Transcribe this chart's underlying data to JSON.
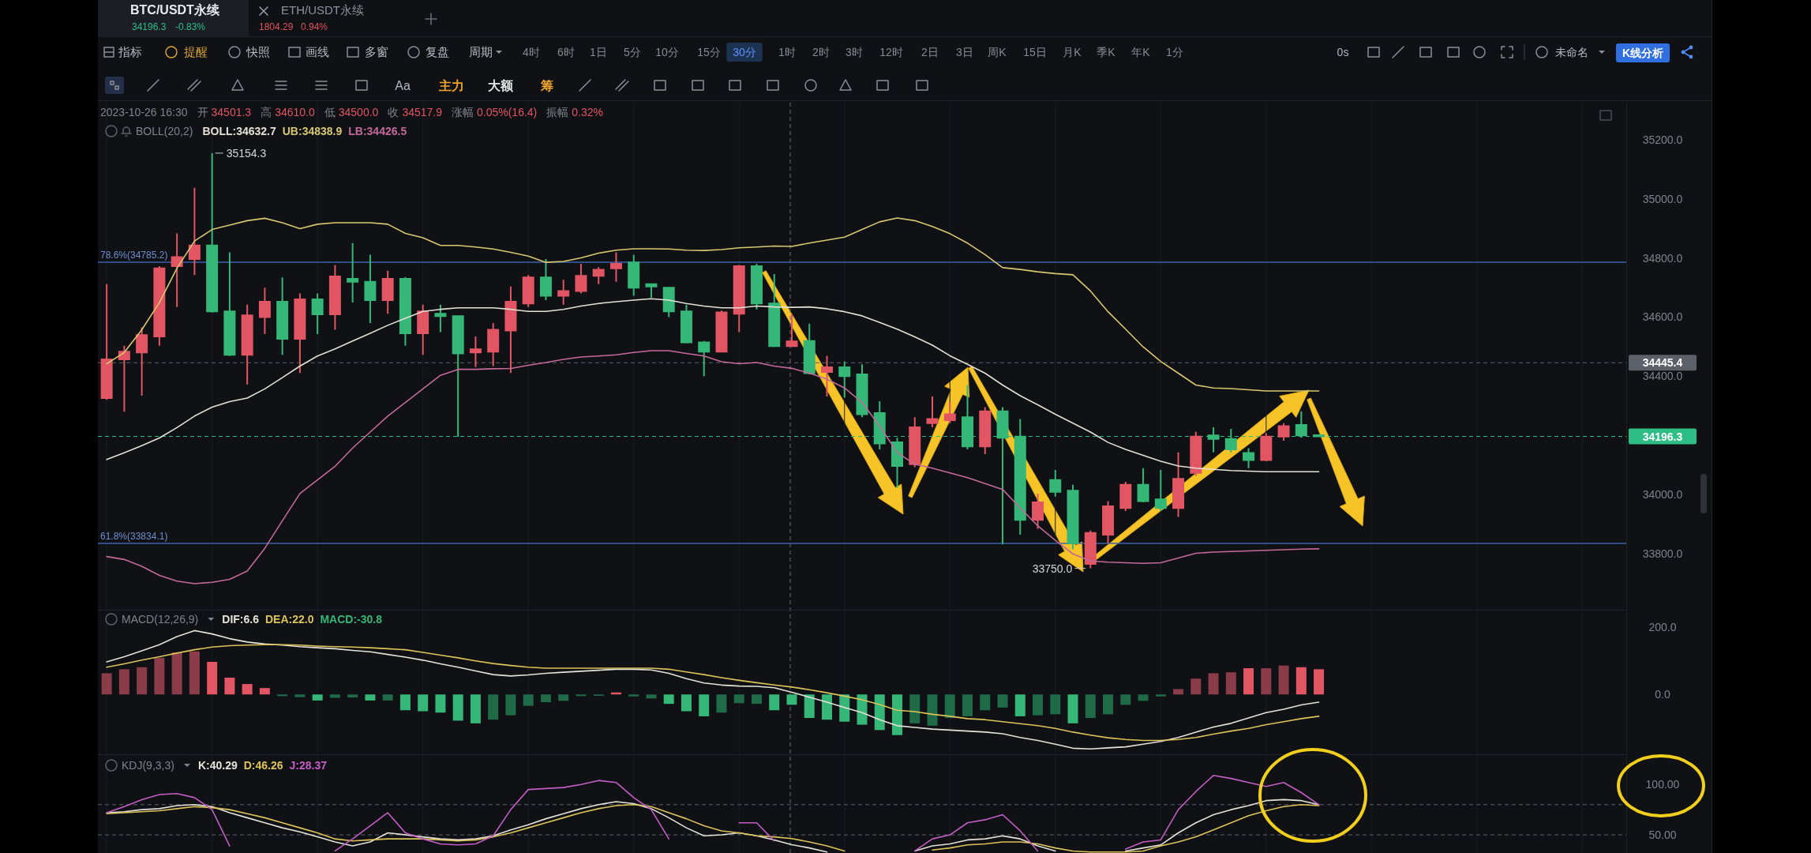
{
  "chart_data": [
    {
      "type": "other",
      "annotations": [
        "BTC/USDT永续",
        "34196.3",
        "-0.83%",
        "ETH/USDT永续",
        "1804.29",
        "0.94%",
        "指标",
        "提醒",
        "快照",
        "画线",
        "多窗",
        "复盘",
        "周期",
        "4时",
        "6时",
        "1日",
        "5分",
        "10分",
        "15分",
        "30分",
        "1时",
        "2时",
        "3时",
        "12时",
        "2日",
        "3日",
        "周K",
        "15日",
        "月K",
        "季K",
        "年K",
        "1分",
        "0s",
        "未命名",
        "K线分析",
        "Aa",
        "主力",
        "大额",
        "筹"
      ]
    },
    {
      "type": "candlestick",
      "categories": [
        null,
        null,
        null,
        null,
        null,
        null,
        null,
        null,
        null,
        null,
        null,
        null,
        null,
        null,
        null,
        null,
        null,
        null,
        null,
        null,
        null,
        null,
        null,
        null,
        null,
        null,
        null,
        null,
        null,
        null,
        null,
        null,
        null,
        null,
        null,
        null,
        null,
        null,
        null,
        null,
        null,
        null,
        null,
        null,
        null,
        null,
        null,
        null,
        null,
        null,
        null,
        null,
        null,
        null,
        null,
        null,
        null,
        null,
        null,
        null,
        null,
        null,
        null,
        null,
        null,
        null,
        null,
        null,
        null,
        null,
        null,
        null,
        null,
        null,
        null,
        null,
        null,
        null,
        null,
        null,
        null,
        null,
        null,
        null,
        null,
        null,
        null
      ],
      "ohlc": [
        [
          34326,
          34711,
          34320,
          34457
        ],
        [
          34457,
          34503,
          34280,
          34483
        ],
        [
          34480,
          34565,
          34334,
          34539
        ],
        [
          34534,
          34772,
          34503,
          34765
        ],
        [
          34772,
          34883,
          34634,
          34803
        ],
        [
          34796,
          35037,
          34742,
          34842
        ],
        [
          34842,
          35154.3,
          34615,
          34619
        ],
        [
          34619,
          34819,
          34468,
          34472
        ],
        [
          34472,
          34642,
          34372,
          34606
        ],
        [
          34600,
          34699,
          34542,
          34652
        ],
        [
          34652,
          34734,
          34472,
          34526
        ],
        [
          34526,
          34680,
          34411,
          34660
        ],
        [
          34660,
          34680,
          34542,
          34609
        ],
        [
          34609,
          34776,
          34557,
          34737
        ],
        [
          34729,
          34850,
          34649,
          34719
        ],
        [
          34719,
          34811,
          34580,
          34657
        ],
        [
          34657,
          34757,
          34611,
          34729
        ],
        [
          34729,
          34735,
          34503,
          34545
        ],
        [
          34545,
          34642,
          34472,
          34619
        ],
        [
          34611,
          34642,
          34549,
          34603
        ],
        [
          34603,
          34606,
          34195,
          34477
        ],
        [
          34480,
          34534,
          34431,
          34491
        ],
        [
          34483,
          34580,
          34434,
          34557
        ],
        [
          34554,
          34703,
          34411,
          34652
        ],
        [
          34646,
          34742,
          34634,
          34734
        ],
        [
          34734,
          34796,
          34657,
          34672
        ],
        [
          34672,
          34726,
          34642,
          34688
        ],
        [
          34688,
          34780,
          34680,
          34739
        ],
        [
          34739,
          34769,
          34711,
          34760
        ],
        [
          34765,
          34819,
          34719,
          34780
        ],
        [
          34785,
          34811,
          34672,
          34699
        ],
        [
          34711,
          34714,
          34665,
          34703
        ],
        [
          34699,
          34702,
          34600,
          34619
        ],
        [
          34619,
          34642,
          34511,
          34514
        ],
        [
          34514,
          34519,
          34400,
          34483
        ],
        [
          34483,
          34622,
          34480,
          34616
        ],
        [
          34611,
          34776,
          34549,
          34772
        ],
        [
          34772,
          34780,
          34626,
          34646
        ],
        [
          34646,
          34745,
          34498,
          34501.5
        ],
        [
          34501.3,
          34610.0,
          34500.0,
          34517.9
        ],
        [
          34519,
          34578,
          34406,
          34410
        ],
        [
          34414,
          34469,
          34331,
          34430
        ],
        [
          34430,
          34450,
          34327,
          34400
        ],
        [
          34406,
          34440,
          34261,
          34271
        ],
        [
          34275,
          34315,
          34152,
          34172
        ],
        [
          34176,
          34192,
          34023,
          34096
        ],
        [
          34102,
          34261,
          34092,
          34227
        ],
        [
          34241,
          34331,
          34227,
          34255
        ],
        [
          34251,
          34311,
          34241,
          34271
        ],
        [
          34261,
          34370,
          34152,
          34162
        ],
        [
          34162,
          34295,
          34136,
          34281
        ],
        [
          34281,
          34295,
          33831,
          34192
        ],
        [
          34196,
          34255,
          33864,
          33914
        ],
        [
          33914,
          34003,
          33884,
          33973
        ],
        [
          34049,
          34083,
          33993,
          34009
        ],
        [
          34013,
          34033,
          33815,
          33835
        ],
        [
          33765,
          33878,
          33750.0,
          33870
        ],
        [
          33864,
          33977,
          33835,
          33960
        ],
        [
          33954,
          34043,
          33944,
          34033
        ],
        [
          34033,
          34089,
          33973,
          33977
        ],
        [
          33983,
          34083,
          33944,
          33954
        ],
        [
          33954,
          34142,
          33924,
          34053
        ],
        [
          34073,
          34212,
          34063,
          34196
        ],
        [
          34200,
          34227,
          34142,
          34188
        ],
        [
          34188,
          34222,
          34142,
          34152
        ],
        [
          34140,
          34156,
          34089,
          34116
        ],
        [
          34116,
          34208,
          34112,
          34196
        ],
        [
          34196,
          34241,
          34182,
          34231
        ],
        [
          34235,
          34281,
          34192,
          34200
        ],
        [
          34200,
          34200,
          34196.3,
          34196.3
        ],
        null,
        null,
        null,
        null,
        null,
        null,
        null,
        null,
        null,
        null,
        null,
        null,
        null,
        null,
        null,
        null,
        null
      ],
      "colors": [
        "#e25563",
        "#e25563",
        "#e25563",
        "#e25563",
        "#e25563",
        "#e25563",
        "#35b777",
        "#35b777",
        "#e25563",
        "#e25563",
        "#35b777",
        "#e25563",
        "#35b777",
        "#e25563",
        "#35b777",
        "#35b777",
        "#e25563",
        "#35b777",
        "#e25563",
        "#35b777",
        "#35b777",
        "#e25563",
        "#e25563",
        "#e25563",
        "#e25563",
        "#35b777",
        "#e25563",
        "#e25563",
        "#e25563",
        "#e25563",
        "#35b777",
        "#35b777",
        "#35b777",
        "#35b777",
        "#35b777",
        "#e25563",
        "#e25563",
        "#35b777",
        "#35b777",
        "#e25563",
        "#35b777",
        "#e25563",
        "#35b777",
        "#35b777",
        "#35b777",
        "#35b777",
        "#e25563",
        "#e25563",
        "#e25563",
        "#35b777",
        "#e25563",
        "#35b777",
        "#35b777",
        "#e25563",
        "#35b777",
        "#35b777",
        "#e25563",
        "#e25563",
        "#e25563",
        "#35b777",
        "#35b777",
        "#e25563",
        "#e25563",
        "#35b777",
        "#35b777",
        "#35b777",
        "#e25563",
        "#e25563",
        "#35b777",
        "#35b777",
        null,
        null,
        null,
        null,
        null,
        null,
        null,
        null,
        null,
        null,
        null,
        null,
        null,
        null,
        null,
        null,
        null
      ],
      "series": [
        {
          "name": "BOLL:34632.7",
          "type": "line",
          "color": "#e4e0d6",
          "values": [
            34118,
            34141,
            34165,
            34191,
            34226,
            34265,
            34295,
            34314,
            34326,
            34357,
            34395,
            34434,
            34468,
            34492,
            34519,
            34545,
            34572,
            34596,
            34619,
            34626,
            34631,
            34631,
            34631,
            34626,
            34619,
            34619,
            34626,
            34637,
            34646,
            34652,
            34657,
            34662,
            34657,
            34646,
            34637,
            34631,
            34631,
            34637,
            34634,
            34632.7,
            34634,
            34628,
            34618,
            34604,
            34582,
            34559,
            34533,
            34505,
            34469,
            34440,
            34410,
            34370,
            34334,
            34303,
            34271,
            34241,
            34211,
            34176,
            34152,
            34132,
            34112,
            34096,
            34089,
            34085,
            34081,
            34079,
            34077,
            34077,
            34077,
            34077,
            null,
            null,
            null,
            null,
            null,
            null,
            null,
            null,
            null,
            null,
            null,
            null,
            null,
            null,
            null,
            null,
            null
          ]
        },
        {
          "name": "UB:34838.9",
          "type": "line",
          "color": "#d9c770",
          "values": [
            34442,
            34480,
            34557,
            34649,
            34765,
            34857,
            34896,
            34911,
            34926,
            34934,
            34919,
            34899,
            34914,
            34919,
            34919,
            34919,
            34914,
            34883,
            34868,
            34842,
            34842,
            34837,
            34830,
            34819,
            34806,
            34785,
            34788,
            34800,
            34816,
            34826,
            34831,
            34831,
            34830,
            34826,
            34825,
            34828,
            34834,
            34837,
            34840,
            34838.9,
            34850,
            34860,
            34870,
            34896,
            34922,
            34935,
            34926,
            34906,
            34882,
            34850,
            34811,
            34767,
            34761,
            34753,
            34747,
            34743,
            34688,
            34618,
            34559,
            34499,
            34450,
            34410,
            34370,
            34360,
            34358,
            34354,
            34350,
            34350,
            34350,
            34350,
            null,
            null,
            null,
            null,
            null,
            null,
            null,
            null,
            null,
            null,
            null,
            null,
            null,
            null,
            null,
            null,
            null
          ]
        },
        {
          "name": "LB:34426.5",
          "type": "line",
          "color": "#c46a9a",
          "values": [
            33790,
            33780,
            33757,
            33726,
            33707,
            33698,
            33703,
            33713,
            33741,
            33818,
            33911,
            34003,
            34049,
            34095,
            34157,
            34211,
            34265,
            34311,
            34357,
            34403,
            34423,
            34423,
            34425,
            34426,
            34437,
            34446,
            34457,
            34465,
            34468,
            34472,
            34480,
            34486,
            34486,
            34477,
            34468,
            34449,
            34442,
            34446,
            34434,
            34426.5,
            34410,
            34390,
            34360,
            34311,
            34231,
            34142,
            34102,
            34089,
            34073,
            34057,
            34037,
            34017,
            33954,
            33894,
            33845,
            33799,
            33775,
            33771,
            33769,
            33767,
            33769,
            33785,
            33801,
            33805,
            33807,
            33809,
            33811,
            33813,
            33815,
            33816,
            null,
            null,
            null,
            null,
            null,
            null,
            null,
            null,
            null,
            null,
            null,
            null,
            null,
            null,
            null,
            null,
            null
          ]
        }
      ],
      "ylim": [
        33610,
        35325
      ],
      "yticks": [
        {
          "value": 35200,
          "label": "35200.0"
        },
        {
          "value": 35000,
          "label": "35000.0"
        },
        {
          "value": 34800,
          "label": "34800.0"
        },
        {
          "value": 34600,
          "label": "34600.0"
        },
        {
          "value": 34400,
          "label": "34400.0"
        },
        {
          "value": 34000,
          "label": "34000.0"
        },
        {
          "value": 33800,
          "label": "33800.0"
        }
      ],
      "grid": "x",
      "legend": "top left",
      "ref_lines": [
        {
          "axis": "y",
          "value": 34785.2,
          "label": "78.6%(34785.2)",
          "color": "#3d63a8",
          "line_style": "solid"
        },
        {
          "axis": "y",
          "value": 33834.1,
          "label": "61.8%(33834.1)",
          "color": "#3d63a8",
          "line_style": "solid"
        },
        {
          "axis": "y",
          "value": 34445.4,
          "label": "34445.4",
          "color": "#5c6068",
          "line_style": "dashed"
        },
        {
          "axis": "y",
          "value": 34196.3,
          "label": "34196.3",
          "color": "#2ebd85",
          "line_style": "dashed"
        }
      ],
      "annotations": [
        "2023-10-26 16:30",
        "开",
        "34501.3",
        "高",
        "34610.0",
        "低",
        "34500.0",
        "收",
        "34517.9",
        "涨幅",
        "0.05%(16.4)",
        "振幅",
        "0.32%",
        "BOLL(20,2)",
        "35154.3",
        "33750.0"
      ]
    },
    {
      "type": "bar",
      "categories": [
        null,
        null,
        null,
        null,
        null,
        null,
        null,
        null,
        null,
        null,
        null,
        null,
        null,
        null,
        null,
        null,
        null,
        null,
        null,
        null,
        null,
        null,
        null,
        null,
        null,
        null,
        null,
        null,
        null,
        null,
        null,
        null,
        null,
        null,
        null,
        null,
        null,
        null,
        null,
        null,
        null,
        null,
        null,
        null,
        null,
        null,
        null,
        null,
        null,
        null,
        null,
        null,
        null,
        null,
        null,
        null,
        null,
        null,
        null,
        null,
        null,
        null,
        null,
        null,
        null,
        null,
        null,
        null,
        null,
        null,
        null,
        null,
        null,
        null,
        null,
        null,
        null,
        null,
        null,
        null,
        null,
        null,
        null,
        null,
        null,
        null,
        null
      ],
      "series": [
        {
          "name": "DIF:6.6",
          "type": "line",
          "color": "#e6e2da",
          "values": [
            97,
            112,
            130,
            148,
            172,
            190,
            180,
            166,
            156,
            150,
            147,
            142,
            139,
            136,
            131,
            127,
            119,
            111,
            102,
            91,
            81,
            70,
            59,
            55,
            58,
            63,
            66,
            69,
            72,
            75,
            75,
            73,
            63,
            47,
            34,
            28,
            25,
            24,
            20,
            6.6,
            -8,
            -23,
            -39,
            -54,
            -75,
            -93,
            -98,
            -103,
            -106,
            -109,
            -112,
            -117,
            -128,
            -137,
            -148,
            -160,
            -162,
            -159,
            -156,
            -148,
            -140,
            -128,
            -112,
            -97,
            -86,
            -70,
            -54,
            -44,
            -31,
            -23,
            null,
            null,
            null,
            null,
            null,
            null,
            null,
            null,
            null,
            null,
            null,
            null,
            null,
            null,
            null,
            null,
            null
          ]
        },
        {
          "name": "DEA:22.0",
          "type": "line",
          "color": "#dcc35a",
          "values": [
            81,
            91,
            102,
            112,
            123,
            133,
            141,
            145,
            147,
            148,
            148,
            147,
            144,
            142,
            141,
            139,
            136,
            133,
            125,
            117,
            109,
            100,
            92,
            86,
            81,
            78,
            78,
            78,
            78,
            78,
            78,
            78,
            75,
            67,
            59,
            50,
            42,
            35,
            28,
            22.0,
            14,
            5,
            -5,
            -16,
            -30,
            -47,
            -51,
            -59,
            -65,
            -72,
            -75,
            -81,
            -87,
            -93,
            -101,
            -112,
            -121,
            -129,
            -134,
            -137,
            -137,
            -134,
            -128,
            -118,
            -109,
            -101,
            -90,
            -81,
            -72,
            -65,
            null,
            null,
            null,
            null,
            null,
            null,
            null,
            null,
            null,
            null,
            null,
            null,
            null,
            null,
            null,
            null,
            null
          ]
        },
        {
          "name": "MACD:-30.8",
          "type": "bar",
          "color": "#35b777",
          "colors": [
            "#8a3c48",
            "#8a3c48",
            "#8a3c48",
            "#8a3c48",
            "#8a3c48",
            "#8a3c48",
            "#e25563",
            "#e25563",
            "#e25563",
            "#e25563",
            "#1f6a47",
            "#1f6a47",
            "#35b777",
            "#1f6a47",
            "#1f6a47",
            "#35b777",
            "#1f6a47",
            "#35b777",
            "#35b777",
            "#35b777",
            "#35b777",
            "#35b777",
            "#1f6a47",
            "#1f6a47",
            "#1f6a47",
            "#1f6a47",
            "#1f6a47",
            "#1f6a47",
            "#1f6a47",
            "#e25563",
            "#1f6a47",
            "#1f6a47",
            "#35b777",
            "#35b777",
            "#35b777",
            "#1f6a47",
            "#1f6a47",
            "#1f6a47",
            "#35b777",
            "#35b777",
            "#35b777",
            "#35b777",
            "#35b777",
            "#35b777",
            "#35b777",
            "#35b777",
            "#1f6a47",
            "#1f6a47",
            "#1f6a47",
            "#1f6a47",
            "#1f6a47",
            "#1f6a47",
            "#35b777",
            "#1f6a47",
            "#1f6a47",
            "#35b777",
            "#1f6a47",
            "#1f6a47",
            "#1f6a47",
            "#1f6a47",
            "#1f6a47",
            "#8a3c48",
            "#8a3c48",
            "#8a3c48",
            "#8a3c48",
            "#e25563",
            "#8a3c48",
            "#8a3c48",
            "#e25563",
            "#e25563",
            null,
            null,
            null,
            null,
            null,
            null,
            null,
            null,
            null,
            null,
            null,
            null,
            null,
            null,
            null,
            null,
            null
          ],
          "values": [
            63,
            75,
            81,
            109,
            125,
            128,
            97,
            50,
            31,
            19,
            -5,
            -8,
            -18,
            -10,
            -9,
            -18,
            -18,
            -47,
            -50,
            -54,
            -78,
            -86,
            -75,
            -62,
            -34,
            -23,
            -19,
            -5,
            -4,
            6,
            -6,
            -12,
            -28,
            -50,
            -65,
            -54,
            -26,
            -28,
            -47,
            -30.8,
            -70,
            -75,
            -81,
            -90,
            -106,
            -121,
            -86,
            -93,
            -70,
            -65,
            -47,
            -39,
            -65,
            -62,
            -59,
            -86,
            -70,
            -59,
            -31,
            -19,
            -6,
            16,
            47,
            63,
            66,
            78,
            78,
            86,
            81,
            75,
            null,
            null,
            null,
            null,
            null,
            null,
            null,
            null,
            null,
            null,
            null,
            null,
            null,
            null,
            null,
            null,
            null
          ]
        }
      ],
      "ylim": [
        -178,
        252
      ],
      "yticks": [
        {
          "value": 200,
          "label": "200.0"
        },
        {
          "value": 0,
          "label": "0.0"
        }
      ],
      "grid": "x",
      "legend": "top left",
      "annotations": [
        "MACD(12,26,9)"
      ]
    },
    {
      "type": "line",
      "categories": [
        null,
        null,
        null,
        null,
        null,
        null,
        null,
        null,
        null,
        null,
        null,
        null,
        null,
        null,
        null,
        null,
        null,
        null,
        null,
        null,
        null,
        null,
        null,
        null,
        null,
        null,
        null,
        null,
        null,
        null,
        null,
        null,
        null,
        null,
        null,
        null,
        null,
        null,
        null,
        null,
        null,
        null,
        null,
        null,
        null,
        null,
        null,
        null,
        null,
        null,
        null,
        null,
        null,
        null,
        null,
        null,
        null,
        null,
        null,
        null,
        null,
        null,
        null,
        null,
        null,
        null,
        null,
        null,
        null,
        null,
        null,
        null,
        null,
        null,
        null,
        null,
        null,
        null,
        null,
        null,
        null,
        null,
        null,
        null,
        null,
        null,
        null
      ],
      "series": [
        {
          "name": "K:40.29",
          "color": "#e6e2da",
          "values": [
            72,
            73,
            75,
            76,
            79,
            80,
            78,
            72,
            67,
            62,
            57,
            53,
            48,
            43,
            39,
            43,
            52,
            50,
            48,
            46,
            45,
            46,
            49,
            55,
            60,
            66,
            71,
            76,
            80,
            83,
            81,
            76,
            67,
            57,
            49,
            50,
            52,
            49,
            45,
            40.29,
            37,
            33,
            null,
            null,
            null,
            null,
            34,
            39,
            41,
            45,
            46,
            49,
            46,
            39,
            34,
            null,
            null,
            null,
            34,
            37,
            40,
            52,
            62,
            70,
            75,
            79,
            84,
            85,
            84,
            80,
            null,
            null,
            null,
            null,
            null,
            null,
            null,
            null,
            null,
            null,
            null,
            null,
            null,
            null,
            null,
            null,
            null
          ]
        },
        {
          "name": "D:46.26",
          "color": "#dcc35a",
          "values": [
            71,
            72,
            73,
            74,
            76,
            78,
            77,
            75,
            71,
            67,
            62,
            57,
            52,
            46,
            44,
            45,
            46,
            46,
            46,
            45,
            44,
            45,
            48,
            52,
            57,
            62,
            67,
            72,
            76,
            79,
            80,
            78,
            72,
            66,
            59,
            54,
            52,
            49,
            48,
            46.26,
            43,
            39,
            34,
            null,
            null,
            null,
            null,
            35,
            37,
            40,
            41,
            43,
            43,
            41,
            37,
            34,
            33,
            33,
            33,
            34,
            39,
            43,
            48,
            55,
            62,
            69,
            74,
            78,
            80,
            79,
            null,
            null,
            null,
            null,
            null,
            null,
            null,
            null,
            null,
            null,
            null,
            null,
            null,
            null,
            null,
            null,
            null
          ]
        },
        {
          "name": "J:28.37",
          "color": "#c45ec4",
          "values": [
            72,
            78,
            85,
            90,
            91,
            87,
            75,
            39,
            null,
            null,
            null,
            null,
            null,
            34,
            46,
            59,
            72,
            52,
            46,
            41,
            40,
            41,
            49,
            75,
            95,
            96,
            97,
            100,
            104,
            102,
            87,
            75,
            46,
            null,
            null,
            null,
            62,
            62,
            44,
            null,
            null,
            null,
            null,
            null,
            null,
            null,
            34,
            46,
            50,
            62,
            65,
            70,
            54,
            34,
            null,
            null,
            null,
            null,
            36,
            43,
            45,
            75,
            93,
            109,
            106,
            102,
            98,
            102,
            92,
            80,
            null,
            null,
            null,
            null,
            null,
            null,
            null,
            null,
            null,
            null,
            null,
            null,
            null,
            null,
            null,
            null,
            null
          ]
        }
      ],
      "ylim": [
        32,
        130
      ],
      "yticks": [
        {
          "value": 100,
          "label": "100.00"
        },
        {
          "value": 50,
          "label": "50.00"
        }
      ],
      "grid": "x",
      "legend": "top left",
      "ref_lines": [
        {
          "axis": "y",
          "value": 80,
          "line_style": "dashed"
        },
        {
          "axis": "y",
          "value": 50,
          "line_style": "dashed"
        }
      ],
      "annotations": [
        "KDJ(9,3,3)"
      ]
    }
  ]
}
